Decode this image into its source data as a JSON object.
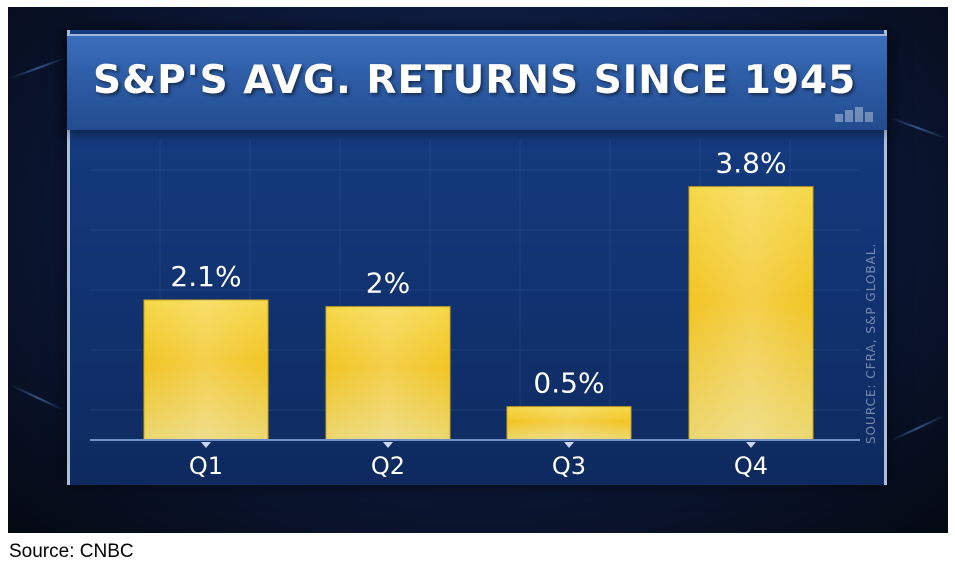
{
  "title": "S&P'S AVG. RETURNS SINCE 1945",
  "source_note": "SOURCE: CFRA, S&P GLOBAL.",
  "caption": "Source: CNBC",
  "colors": {
    "bar_top": "#f6d84a",
    "bar_mid": "#f2c524",
    "bar_bottom": "#e9d36a",
    "panel": "#133777",
    "label": "#ffffff"
  },
  "chart_data": {
    "type": "bar",
    "title": "S&P'S AVG. RETURNS SINCE 1945",
    "categories": [
      "Q1",
      "Q2",
      "Q3",
      "Q4"
    ],
    "values": [
      2.1,
      2.0,
      0.5,
      3.8
    ],
    "value_labels": [
      "2.1%",
      "2%",
      "0.5%",
      "3.8%"
    ],
    "xlabel": "",
    "ylabel": "",
    "ylim": [
      0,
      4.5
    ],
    "grid": true,
    "legend": "none"
  }
}
